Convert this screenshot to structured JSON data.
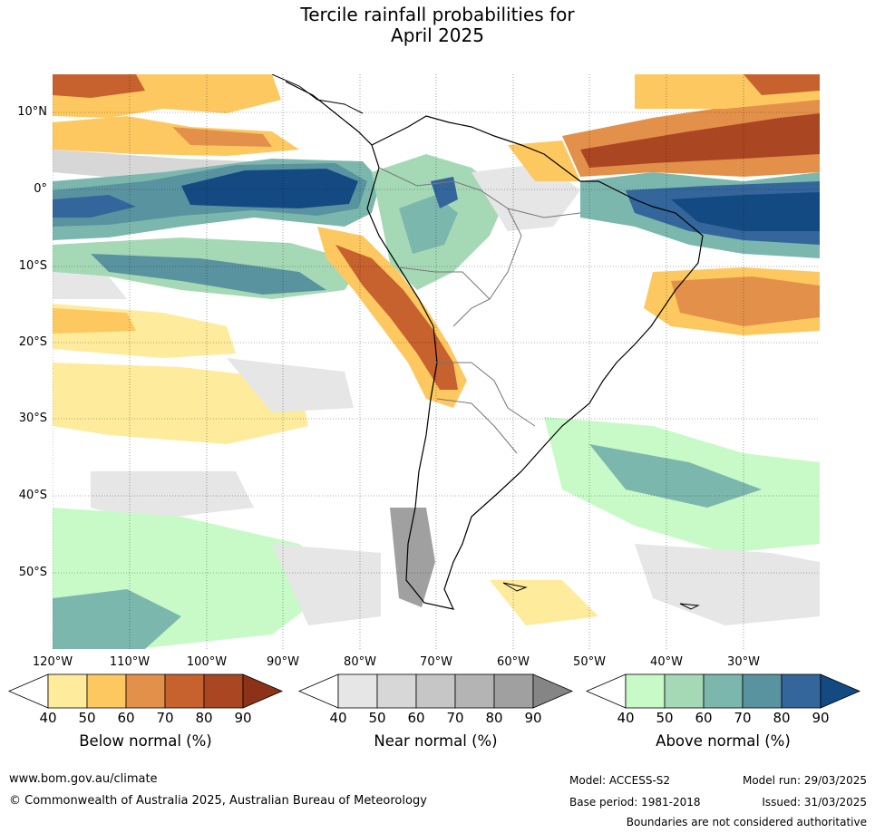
{
  "title": {
    "line1": "Tercile rainfall probabilities for",
    "line2": "April 2025"
  },
  "map": {
    "lat_labels": [
      "10°N",
      "0°",
      "10°S",
      "20°S",
      "30°S",
      "40°S",
      "50°S"
    ],
    "lon_labels": [
      "120°W",
      "110°W",
      "100°W",
      "90°W",
      "80°W",
      "70°W",
      "60°W",
      "50°W",
      "40°W",
      "30°W"
    ]
  },
  "colorbars": [
    {
      "label": "Below normal (%)",
      "ticks": [
        "40",
        "50",
        "60",
        "70",
        "80",
        "90"
      ],
      "colors": [
        "#ffffff",
        "#ffeb9c",
        "#fdc860",
        "#e3914a",
        "#c7612e",
        "#ab4623",
        "#8c3219"
      ]
    },
    {
      "label": "Near normal (%)",
      "ticks": [
        "40",
        "50",
        "60",
        "70",
        "80",
        "90"
      ],
      "colors": [
        "#ffffff",
        "#e6e6e6",
        "#d7d7d7",
        "#c6c6c6",
        "#b4b4b4",
        "#a0a0a0",
        "#858585"
      ]
    },
    {
      "label": "Above normal (%)",
      "ticks": [
        "40",
        "50",
        "60",
        "70",
        "80",
        "90"
      ],
      "colors": [
        "#ffffff",
        "#c8fac8",
        "#a5d9b6",
        "#7cb7ae",
        "#5a93a0",
        "#34659b",
        "#144a82"
      ]
    }
  ],
  "footer": {
    "website": "www.bom.gov.au/climate",
    "copyright": "© Commonwealth of Australia 2025, Australian Bureau of Meteorology",
    "model": "Model: ACCESS-S2",
    "base_period": "Base period: 1981-2018",
    "model_run": "Model run: 29/03/2025",
    "issued": "Issued: 31/03/2025",
    "disclaimer": "Boundaries are not considered authoritative"
  }
}
